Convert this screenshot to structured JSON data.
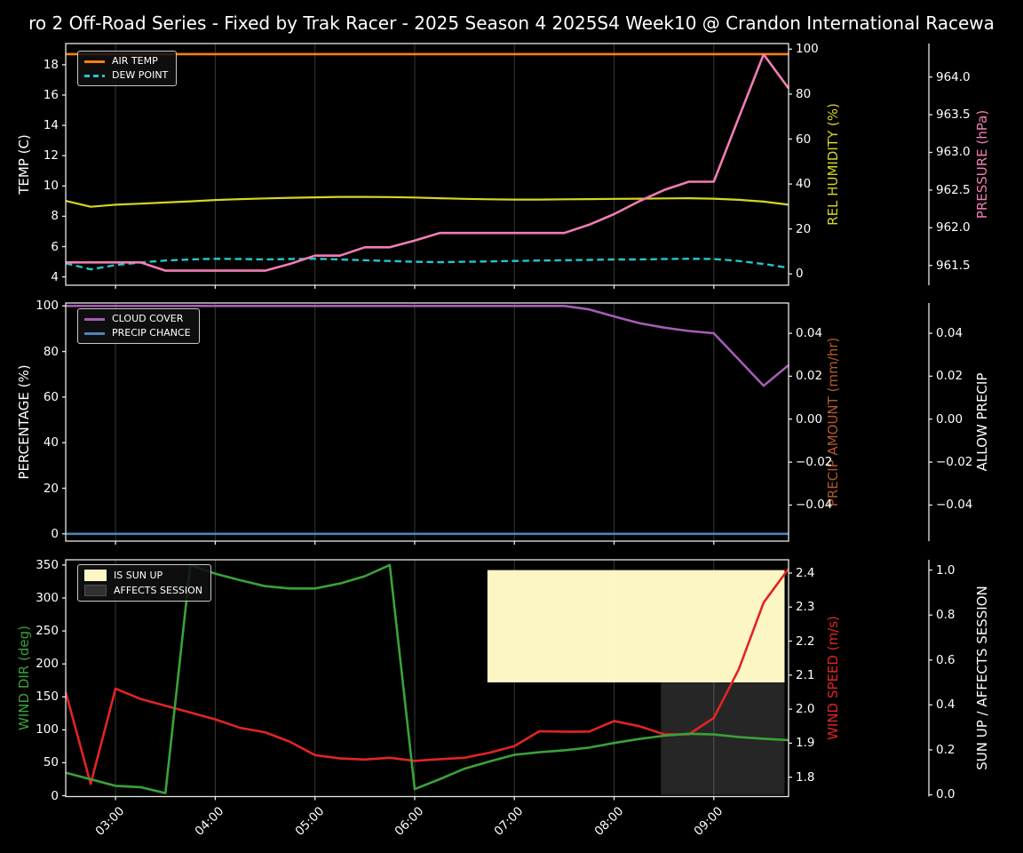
{
  "title": "ro 2 Off-Road Series - Fixed by Trak Racer - 2025 Season 4 2025S4 Week10 @ Crandon International Racewa",
  "colors": {
    "background": "#000000",
    "spine": "#e8e8e8",
    "tick_label": "#ffffff",
    "grid": "rgba(255,255,255,0.22)",
    "legend_border": "#c8c8c8"
  },
  "x_hours": [
    2.5,
    2.75,
    3.0,
    3.25,
    3.5,
    3.75,
    4.0,
    4.25,
    4.5,
    4.75,
    5.0,
    5.25,
    5.5,
    5.75,
    6.0,
    6.25,
    6.5,
    6.75,
    7.0,
    7.25,
    7.5,
    7.75,
    8.0,
    8.25,
    8.5,
    8.75,
    9.0,
    9.25,
    9.5,
    9.75
  ],
  "x_axis": {
    "domain": [
      2.5,
      9.75
    ],
    "ticks": [
      {
        "v": 3,
        "label": "03:00"
      },
      {
        "v": 4,
        "label": "04:00"
      },
      {
        "v": 5,
        "label": "05:00"
      },
      {
        "v": 6,
        "label": "06:00"
      },
      {
        "v": 7,
        "label": "07:00"
      },
      {
        "v": 8,
        "label": "08:00"
      },
      {
        "v": 9,
        "label": "09:00"
      }
    ]
  },
  "chart_data": [
    {
      "type": "line",
      "name": "temperature-humidity-pressure",
      "axes": {
        "left": {
          "label": "TEMP (C)",
          "color": "#ffffff",
          "range": [
            3.45,
            19.4
          ],
          "ticks": [
            {
              "v": 4,
              "label": "4"
            },
            {
              "v": 6,
              "label": "6"
            },
            {
              "v": 8,
              "label": "8"
            },
            {
              "v": 10,
              "label": "10"
            },
            {
              "v": 12,
              "label": "12"
            },
            {
              "v": 14,
              "label": "14"
            },
            {
              "v": 16,
              "label": "16"
            },
            {
              "v": 18,
              "label": "18"
            }
          ]
        },
        "right0": {
          "label": "REL HUMIDITY (%)",
          "color": "#d6d620",
          "range": [
            -5.0,
            102.5
          ],
          "ticks": [
            {
              "v": 0,
              "label": "0"
            },
            {
              "v": 20,
              "label": "20"
            },
            {
              "v": 40,
              "label": "40"
            },
            {
              "v": 60,
              "label": "60"
            },
            {
              "v": 80,
              "label": "80"
            },
            {
              "v": 100,
              "label": "100"
            }
          ]
        },
        "right1": {
          "label": "PRESSURE (hPa)",
          "color": "#f27db4",
          "range": [
            961.237,
            964.444
          ],
          "ticks": [
            {
              "v": 961.5,
              "label": "961.5"
            },
            {
              "v": 962.0,
              "label": "962.0"
            },
            {
              "v": 962.5,
              "label": "962.5"
            },
            {
              "v": 963.0,
              "label": "963.0"
            },
            {
              "v": 963.5,
              "label": "963.5"
            },
            {
              "v": 964.0,
              "label": "964.0"
            }
          ]
        }
      },
      "legend": [
        {
          "label": "AIR TEMP",
          "color": "#ff7f0e",
          "style": "line"
        },
        {
          "label": "DEW POINT",
          "color": "#1ec8cd",
          "style": "dashed"
        }
      ],
      "series": [
        {
          "name": "AIR TEMP",
          "axis": "left",
          "color": "#ff7f0e",
          "dash": false,
          "width": 2.6,
          "values": [
            18.7,
            18.7,
            18.7,
            18.7,
            18.7,
            18.7,
            18.7,
            18.7,
            18.7,
            18.7,
            18.7,
            18.7,
            18.7,
            18.7,
            18.7,
            18.7,
            18.7,
            18.7,
            18.7,
            18.7,
            18.7,
            18.7,
            18.7,
            18.7,
            18.7,
            18.7,
            18.7,
            18.7,
            18.7,
            18.7
          ]
        },
        {
          "name": "DEW POINT",
          "axis": "left",
          "color": "#1ec8cd",
          "dash": true,
          "width": 2.4,
          "values": [
            4.9,
            4.5,
            4.78,
            4.95,
            5.08,
            5.15,
            5.2,
            5.18,
            5.15,
            5.18,
            5.2,
            5.15,
            5.1,
            5.05,
            5.0,
            4.97,
            5.0,
            5.02,
            5.05,
            5.08,
            5.1,
            5.12,
            5.15,
            5.15,
            5.18,
            5.2,
            5.18,
            5.05,
            4.85,
            4.6
          ]
        },
        {
          "name": "REL HUMIDITY",
          "axis": "right0",
          "color": "#d6d620",
          "dash": false,
          "width": 2.2,
          "values": [
            32.5,
            29.9,
            30.8,
            31.3,
            31.8,
            32.3,
            32.9,
            33.3,
            33.6,
            33.9,
            34.1,
            34.3,
            34.3,
            34.2,
            34.0,
            33.7,
            33.4,
            33.2,
            33.1,
            33.1,
            33.2,
            33.3,
            33.4,
            33.5,
            33.6,
            33.7,
            33.5,
            33.0,
            32.2,
            30.8
          ]
        },
        {
          "name": "PRESSURE",
          "axis": "right1",
          "color": "#f27db4",
          "dash": false,
          "width": 2.6,
          "values": [
            961.54,
            961.54,
            961.54,
            961.54,
            961.43,
            961.43,
            961.43,
            961.43,
            961.43,
            961.52,
            961.63,
            961.63,
            961.74,
            961.74,
            961.83,
            961.93,
            961.93,
            961.93,
            961.93,
            961.93,
            961.93,
            962.04,
            962.18,
            962.35,
            962.5,
            962.61,
            962.61,
            963.46,
            964.3,
            963.85
          ]
        }
      ],
      "bands": []
    },
    {
      "type": "line",
      "name": "cloud-precip",
      "axes": {
        "left": {
          "label": "PERCENTAGE (%)",
          "color": "#ffffff",
          "range": [
            -3.2,
            101.3
          ],
          "ticks": [
            {
              "v": 0,
              "label": "0"
            },
            {
              "v": 20,
              "label": "20"
            },
            {
              "v": 40,
              "label": "40"
            },
            {
              "v": 60,
              "label": "60"
            },
            {
              "v": 80,
              "label": "80"
            },
            {
              "v": 100,
              "label": "100"
            }
          ]
        },
        "right0": {
          "label": "PRECIP AMOUNT (mm/hr)",
          "color": "#b5592b",
          "range": [
            -0.0568,
            0.0541
          ],
          "ticks": [
            {
              "v": -0.04,
              "label": "−0.04"
            },
            {
              "v": -0.02,
              "label": "−0.02"
            },
            {
              "v": 0.0,
              "label": "0.00"
            },
            {
              "v": 0.02,
              "label": "0.02"
            },
            {
              "v": 0.04,
              "label": "0.04"
            }
          ]
        },
        "right1": {
          "label": "ALLOW PRECIP",
          "color": "#ffffff",
          "range": [
            -0.0568,
            0.0541
          ],
          "ticks": [
            {
              "v": -0.04,
              "label": "−0.04"
            },
            {
              "v": -0.02,
              "label": "−0.02"
            },
            {
              "v": 0.0,
              "label": "0.00"
            },
            {
              "v": 0.02,
              "label": "0.02"
            },
            {
              "v": 0.04,
              "label": "0.04"
            }
          ]
        }
      },
      "legend": [
        {
          "label": "CLOUD COVER",
          "color": "#a55cb5",
          "style": "line"
        },
        {
          "label": "PRECIP CHANCE",
          "color": "#4a85b8",
          "style": "line"
        }
      ],
      "series": [
        {
          "name": "CLOUD COVER",
          "axis": "left",
          "color": "#a55cb5",
          "dash": false,
          "width": 2.6,
          "values": [
            100,
            100,
            100,
            100,
            100,
            100,
            100,
            100,
            100,
            100,
            100,
            100,
            100,
            100,
            100,
            100,
            100,
            100,
            100,
            100,
            100,
            98.5,
            95.4,
            92.5,
            90.5,
            89,
            88,
            76.5,
            65,
            74
          ]
        },
        {
          "name": "PRECIP CHANCE",
          "axis": "left",
          "color": "#4a85b8",
          "dash": false,
          "width": 2.6,
          "values": [
            0,
            0,
            0,
            0,
            0,
            0,
            0,
            0,
            0,
            0,
            0,
            0,
            0,
            0,
            0,
            0,
            0,
            0,
            0,
            0,
            0,
            0,
            0,
            0,
            0,
            0,
            0,
            0,
            0,
            0
          ]
        }
      ],
      "bands": []
    },
    {
      "type": "line",
      "name": "wind-sun",
      "axes": {
        "left": {
          "label": "WIND DIR (deg)",
          "color": "#3aa23a",
          "range": [
            -1.3,
            358
          ],
          "ticks": [
            {
              "v": 0,
              "label": "0"
            },
            {
              "v": 50,
              "label": "50"
            },
            {
              "v": 100,
              "label": "100"
            },
            {
              "v": 150,
              "label": "150"
            },
            {
              "v": 200,
              "label": "200"
            },
            {
              "v": 250,
              "label": "250"
            },
            {
              "v": 300,
              "label": "300"
            },
            {
              "v": 350,
              "label": "350"
            }
          ]
        },
        "right0": {
          "label": "WIND SPEED (m/s)",
          "color": "#e22424",
          "range": [
            1.743,
            2.439
          ],
          "ticks": [
            {
              "v": 1.8,
              "label": "1.8"
            },
            {
              "v": 1.9,
              "label": "1.9"
            },
            {
              "v": 2.0,
              "label": "2.0"
            },
            {
              "v": 2.1,
              "label": "2.1"
            },
            {
              "v": 2.2,
              "label": "2.2"
            },
            {
              "v": 2.3,
              "label": "2.3"
            },
            {
              "v": 2.4,
              "label": "2.4"
            }
          ]
        },
        "right1": {
          "label": "SUN UP / AFFECTS SESSION",
          "color": "#ffffff",
          "range": [
            -0.008,
            1.046
          ],
          "ticks": [
            {
              "v": 0.0,
              "label": "0.0"
            },
            {
              "v": 0.2,
              "label": "0.2"
            },
            {
              "v": 0.4,
              "label": "0.4"
            },
            {
              "v": 0.6,
              "label": "0.6"
            },
            {
              "v": 0.8,
              "label": "0.8"
            },
            {
              "v": 1.0,
              "label": "1.0"
            }
          ]
        }
      },
      "legend": [
        {
          "label": "IS SUN UP",
          "color": "#fbf6c4",
          "style": "patch"
        },
        {
          "label": "AFFECTS SESSION",
          "color": "#303030",
          "style": "patch"
        }
      ],
      "series": [
        {
          "name": "WIND SPEED",
          "axis": "right0",
          "color": "#e22424",
          "dash": false,
          "width": 2.6,
          "values": [
            2.05,
            1.78,
            2.06,
            2.03,
            2.01,
            1.99,
            1.97,
            1.945,
            1.932,
            1.904,
            1.865,
            1.855,
            1.852,
            1.857,
            1.848,
            1.853,
            1.857,
            1.872,
            1.891,
            1.935,
            1.934,
            1.934,
            1.965,
            1.95,
            1.926,
            1.926,
            1.974,
            2.117,
            2.313,
            2.413
          ]
        },
        {
          "name": "WIND DIR",
          "axis": "left",
          "color": "#3aa23a",
          "dash": false,
          "width": 2.6,
          "values": [
            35,
            25,
            15,
            13,
            4,
            350,
            337,
            327,
            318,
            314.5,
            314.5,
            322,
            333,
            350,
            10,
            25,
            41,
            52,
            62,
            66,
            69,
            73,
            80,
            86,
            91,
            94,
            93,
            89,
            86.5,
            84.5
          ]
        }
      ],
      "bands": [
        {
          "name": "IS SUN UP",
          "axis": "right1",
          "from_hour": 6.73,
          "to_hour": 9.71,
          "v0": 0.5,
          "v1": 1.0,
          "color": "#fbf6c4"
        },
        {
          "name": "AFFECTS SESSION",
          "axis": "right1",
          "from_hour": 8.47,
          "to_hour": 9.71,
          "v0": 0.0,
          "v1": 0.5,
          "color": "#262626"
        }
      ]
    }
  ]
}
